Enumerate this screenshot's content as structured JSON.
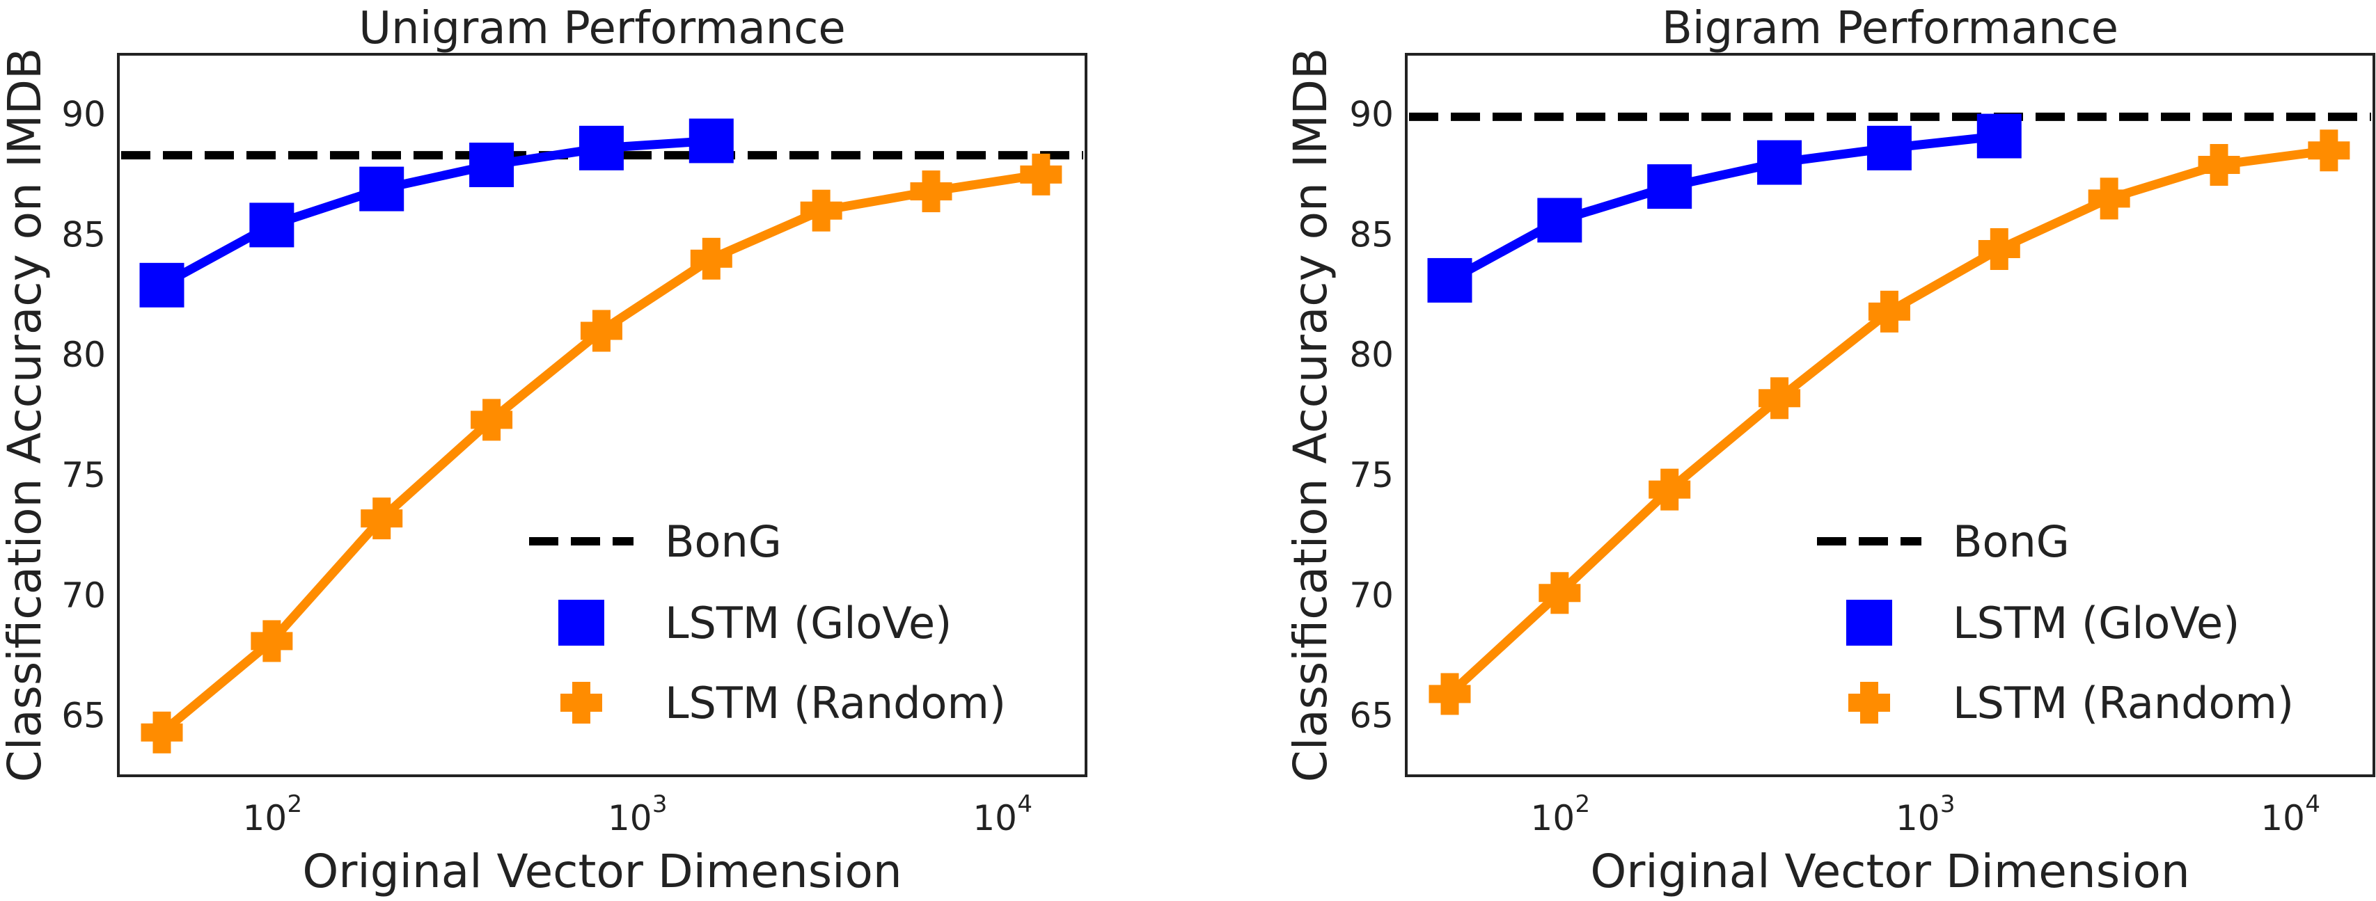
{
  "chart_data": [
    {
      "type": "line",
      "title": "Unigram Performance",
      "xlabel": "Original Vector Dimension",
      "ylabel": "Classification Accuracy on IMDB",
      "xscale": "log",
      "xlim": [
        38,
        17000
      ],
      "ylim": [
        62.5,
        92.5
      ],
      "yticks": [
        65,
        70,
        75,
        80,
        85,
        90
      ],
      "xticks": [
        {
          "base": "10",
          "exp": "2",
          "value": 100
        },
        {
          "base": "10",
          "exp": "3",
          "value": 1000
        },
        {
          "base": "10",
          "exp": "4",
          "value": 10000
        }
      ],
      "grid": false,
      "legend_position": "lower-right",
      "baseline": {
        "name": "BonG",
        "value": 88.3,
        "color": "#000000"
      },
      "series": [
        {
          "name": "LSTM (GloVe)",
          "marker": "square",
          "color": "#0000ff",
          "x": [
            50,
            100,
            200,
            400,
            800,
            1600
          ],
          "y": [
            82.9,
            85.4,
            86.9,
            87.9,
            88.6,
            88.9
          ]
        },
        {
          "name": "LSTM (Random)",
          "marker": "plus",
          "color": "#ff8c00",
          "x": [
            50,
            100,
            200,
            400,
            800,
            1600,
            3200,
            6400,
            12800
          ],
          "y": [
            64.3,
            68.1,
            73.2,
            77.3,
            81.0,
            84.0,
            86.0,
            86.8,
            87.5
          ]
        }
      ]
    },
    {
      "type": "line",
      "title": "Bigram Performance",
      "xlabel": "Original Vector Dimension",
      "ylabel": "Classification Accuracy on IMDB",
      "xscale": "log",
      "xlim": [
        38,
        17000
      ],
      "ylim": [
        62.5,
        92.5
      ],
      "yticks": [
        65,
        70,
        75,
        80,
        85,
        90
      ],
      "xticks": [
        {
          "base": "10",
          "exp": "2",
          "value": 100
        },
        {
          "base": "10",
          "exp": "3",
          "value": 1000
        },
        {
          "base": "10",
          "exp": "4",
          "value": 10000
        }
      ],
      "grid": false,
      "legend_position": "lower-right",
      "baseline": {
        "name": "BonG",
        "value": 89.9,
        "color": "#000000"
      },
      "series": [
        {
          "name": "LSTM (GloVe)",
          "marker": "square",
          "color": "#0000ff",
          "x": [
            50,
            100,
            200,
            400,
            800,
            1600
          ],
          "y": [
            83.1,
            85.6,
            87.0,
            88.0,
            88.6,
            89.1
          ]
        },
        {
          "name": "LSTM (Random)",
          "marker": "plus",
          "color": "#ff8c00",
          "x": [
            50,
            100,
            200,
            400,
            800,
            1600,
            3200,
            6400,
            12800
          ],
          "y": [
            65.9,
            70.1,
            74.4,
            78.2,
            81.8,
            84.4,
            86.5,
            87.9,
            88.5
          ]
        }
      ]
    }
  ]
}
